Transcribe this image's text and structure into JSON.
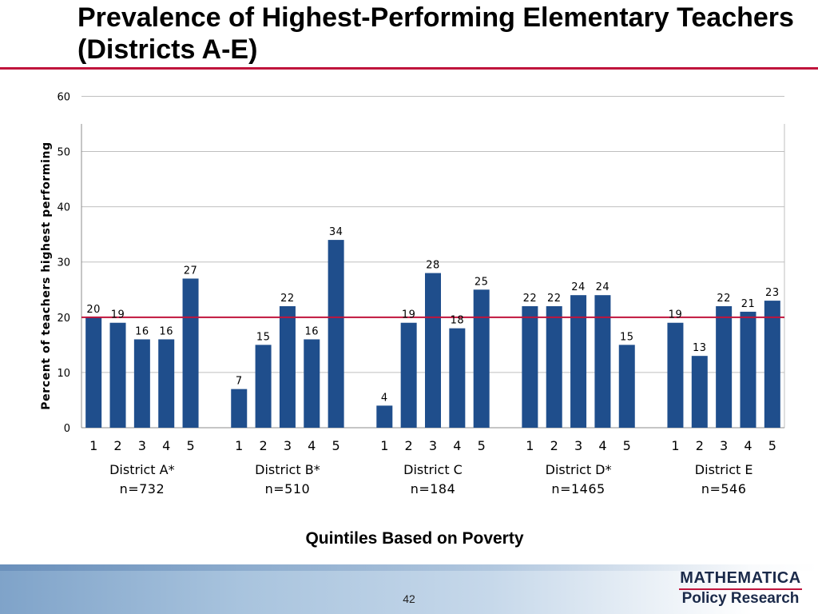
{
  "slide": {
    "title": "Prevalence of Highest-Performing Elementary Teachers (Districts A-E)",
    "page_number": "42"
  },
  "logo": {
    "line1": "MATHEMATICA",
    "line2": "Policy Research"
  },
  "colors": {
    "bar": "#1f4e8c",
    "reference_line": "#c0143c",
    "grid": "#bfbfbf",
    "title_rule": "#c0143c"
  },
  "chart_data": {
    "type": "bar",
    "title": "",
    "xlabel": "Quintiles Based on Poverty",
    "ylabel": "Percent of teachers highest performing",
    "ylim": [
      0,
      60
    ],
    "yticks": [
      0,
      10,
      20,
      30,
      40,
      50,
      60
    ],
    "grid": true,
    "reference_line": {
      "y": 20
    },
    "groups": [
      {
        "name": "District A*",
        "n_label": "n=732",
        "categories": [
          "1",
          "2",
          "3",
          "4",
          "5"
        ],
        "values": [
          20,
          19,
          16,
          16,
          27
        ]
      },
      {
        "name": "District B*",
        "n_label": "n=510",
        "categories": [
          "1",
          "2",
          "3",
          "4",
          "5"
        ],
        "values": [
          7,
          15,
          22,
          16,
          34
        ]
      },
      {
        "name": "District C",
        "n_label": "n=184",
        "categories": [
          "1",
          "2",
          "3",
          "4",
          "5"
        ],
        "values": [
          4,
          19,
          28,
          18,
          25
        ]
      },
      {
        "name": "District D*",
        "n_label": "n=1465",
        "categories": [
          "1",
          "2",
          "3",
          "4",
          "5"
        ],
        "values": [
          22,
          22,
          24,
          24,
          15
        ]
      },
      {
        "name": "District E",
        "n_label": "n=546",
        "categories": [
          "1",
          "2",
          "3",
          "4",
          "5"
        ],
        "values": [
          19,
          13,
          22,
          21,
          23
        ]
      }
    ]
  }
}
